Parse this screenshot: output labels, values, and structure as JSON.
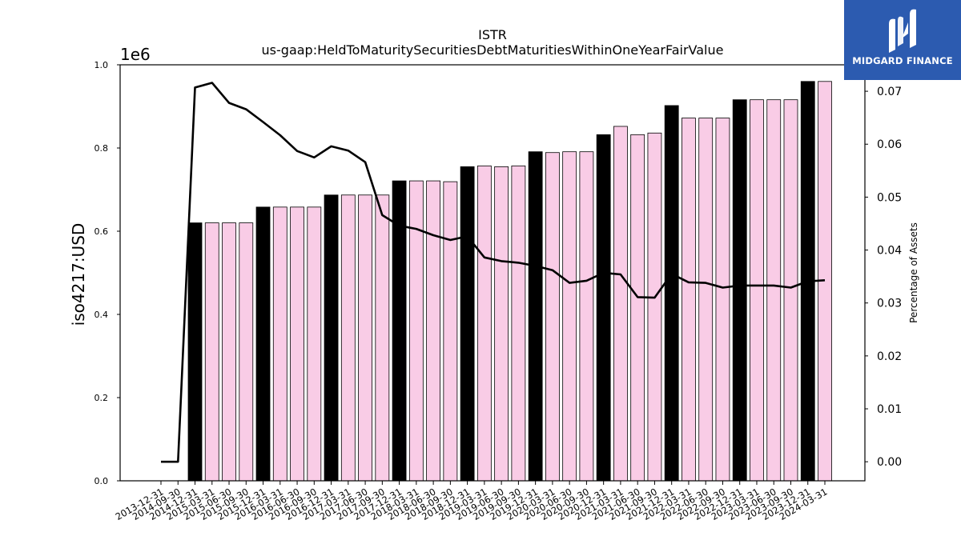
{
  "chart_data": {
    "type": "bar",
    "title": "ISTR",
    "subtitle": "us-gaap:HeldToMaturitySecuritiesDebtMaturitiesWithinOneYearFairValue",
    "ylabel": "iso4217:USD",
    "y_offset_label": "1e6",
    "y2label": "Percentage of Assets",
    "ylim": [
      0,
      1000000
    ],
    "y2lim": [
      -0.0036,
      0.075
    ],
    "yticks": [
      0,
      200000,
      400000,
      600000,
      800000,
      1000000
    ],
    "ytick_labels": [
      "0.0",
      "0.2",
      "0.4",
      "0.6",
      "0.8",
      "1.0"
    ],
    "y2ticks": [
      0,
      0.01,
      0.02,
      0.03,
      0.04,
      0.05,
      0.06,
      0.07
    ],
    "y2tick_labels": [
      "0.00",
      "0.01",
      "0.02",
      "0.03",
      "0.04",
      "0.05",
      "0.06",
      "0.07"
    ],
    "categories": [
      "2013-12-31",
      "2014-09-30",
      "2014-12-31",
      "2015-03-31",
      "2015-06-30",
      "2015-09-30",
      "2015-12-31",
      "2016-03-31",
      "2016-06-30",
      "2016-09-30",
      "2016-12-31",
      "2017-03-31",
      "2017-06-30",
      "2017-09-30",
      "2017-12-31",
      "2018-03-31",
      "2018-06-30",
      "2018-09-30",
      "2018-12-31",
      "2019-03-31",
      "2019-06-30",
      "2019-09-30",
      "2019-12-31",
      "2020-03-31",
      "2020-06-30",
      "2020-09-30",
      "2020-12-31",
      "2021-03-31",
      "2021-06-30",
      "2021-09-30",
      "2021-12-31",
      "2022-03-31",
      "2022-06-30",
      "2022-09-30",
      "2022-12-31",
      "2023-03-31",
      "2023-06-30",
      "2023-09-30",
      "2023-12-31",
      "2024-03-31"
    ],
    "series": [
      {
        "kind": "bar",
        "values": [
          0,
          0,
          620000,
          620000,
          620000,
          620000,
          658000,
          658000,
          658000,
          658000,
          687000,
          687000,
          687000,
          687000,
          721000,
          721000,
          721000,
          719000,
          755000,
          757000,
          755000,
          757000,
          791000,
          789000,
          791000,
          791000,
          832000,
          852000,
          832000,
          836000,
          902000,
          872000,
          872000,
          872000,
          916000,
          916000,
          916000,
          916000,
          960000,
          960000
        ],
        "annual_color": "#000000",
        "quarter_color": "#f9cce6"
      },
      {
        "kind": "line",
        "axis": "right",
        "color": "#000000",
        "values": [
          0.0,
          0.0,
          0.0707,
          0.0716,
          0.0678,
          0.0666,
          0.0642,
          0.0617,
          0.0587,
          0.0575,
          0.0596,
          0.0588,
          0.0566,
          0.0466,
          0.0446,
          0.044,
          0.0428,
          0.0419,
          0.0426,
          0.0386,
          0.0379,
          0.0376,
          0.037,
          0.0362,
          0.0338,
          0.0342,
          0.0357,
          0.0354,
          0.0311,
          0.031,
          0.0355,
          0.0339,
          0.0338,
          0.0329,
          0.0333,
          0.0333,
          0.0333,
          0.0329,
          0.0341,
          0.0343
        ]
      }
    ],
    "grid": false,
    "legend": "none"
  },
  "logo": {
    "text": "MIDGARD FINANCE",
    "bg_color": "#2c5bb0",
    "icon": "midgard-m-logo-icon"
  }
}
